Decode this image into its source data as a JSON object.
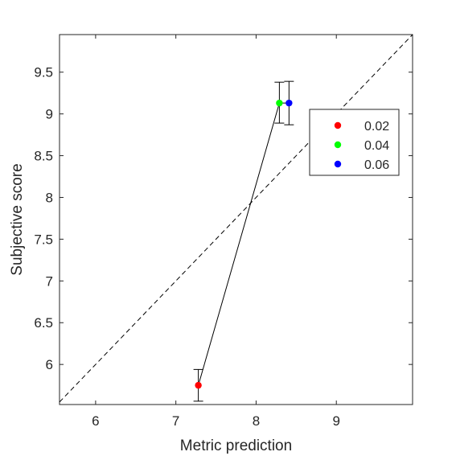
{
  "chart_data": {
    "type": "scatter",
    "title": "",
    "xlabel": "Metric prediction",
    "ylabel": "Subjective score",
    "xlim": [
      5.55,
      9.95
    ],
    "ylim": [
      5.52,
      9.95
    ],
    "xticks": [
      6,
      7,
      8,
      9
    ],
    "yticks": [
      6,
      6.5,
      7,
      7.5,
      8,
      8.5,
      9,
      9.5
    ],
    "xtick_labels": [
      "6",
      "7",
      "8",
      "9"
    ],
    "ytick_labels": [
      "6",
      "6.5",
      "7",
      "7.5",
      "8",
      "8.5",
      "9",
      "9.5"
    ],
    "grid": false,
    "legend_position": "upper-right",
    "reference_line": {
      "style": "dashed",
      "color": "#000000",
      "description": "identity line y = x"
    },
    "connecting_line": {
      "color": "#000000"
    },
    "series": [
      {
        "name": "0.02",
        "color": "#ff0000",
        "x": 7.28,
        "y": 5.75,
        "err_low": 5.56,
        "err_high": 5.94
      },
      {
        "name": "0.04",
        "color": "#00ff00",
        "x": 8.29,
        "y": 9.13,
        "err_low": 8.89,
        "err_high": 9.38
      },
      {
        "name": "0.06",
        "color": "#0000ff",
        "x": 8.41,
        "y": 9.13,
        "err_low": 8.87,
        "err_high": 9.39
      }
    ]
  }
}
